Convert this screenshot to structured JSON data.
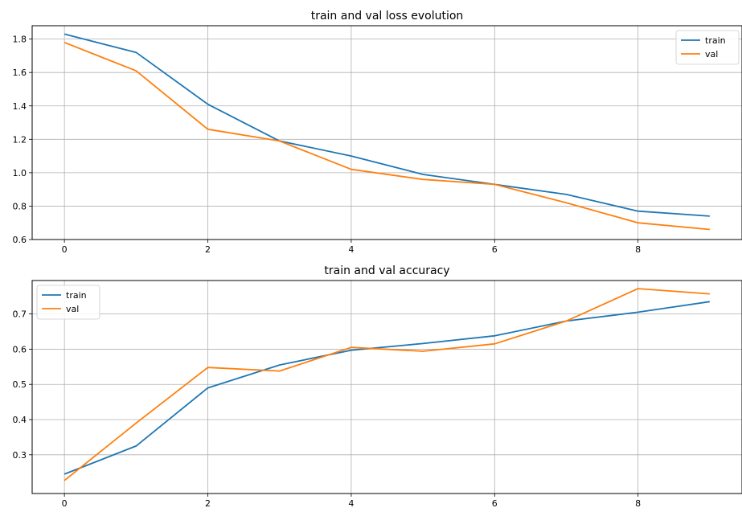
{
  "chart_data": [
    {
      "type": "line",
      "title": "train and val loss evolution",
      "xlabel": "",
      "ylabel": "",
      "x": [
        0,
        1,
        2,
        3,
        4,
        5,
        6,
        7,
        8,
        9
      ],
      "xlim": [
        -0.45,
        9.45
      ],
      "ylim": [
        0.6,
        1.88
      ],
      "xticks": [
        0,
        2,
        4,
        6,
        8
      ],
      "yticks": [
        0.6,
        0.8,
        1.0,
        1.2,
        1.4,
        1.6,
        1.8
      ],
      "ytick_format": 1,
      "grid": true,
      "legend_position": "top-right",
      "series": [
        {
          "name": "train",
          "color": "#1f77b4",
          "values": [
            1.83,
            1.72,
            1.41,
            1.19,
            1.1,
            0.99,
            0.93,
            0.87,
            0.77,
            0.74
          ]
        },
        {
          "name": "val",
          "color": "#ff7f0e",
          "values": [
            1.78,
            1.61,
            1.26,
            1.19,
            1.02,
            0.96,
            0.93,
            0.82,
            0.7,
            0.66
          ]
        }
      ]
    },
    {
      "type": "line",
      "title": "train and val accuracy",
      "xlabel": "",
      "ylabel": "",
      "x": [
        0,
        1,
        2,
        3,
        4,
        5,
        6,
        7,
        8,
        9
      ],
      "xlim": [
        -0.45,
        9.45
      ],
      "ylim": [
        0.19,
        0.795
      ],
      "xticks": [
        0,
        2,
        4,
        6,
        8
      ],
      "yticks": [
        0.3,
        0.4,
        0.5,
        0.6,
        0.7
      ],
      "ytick_format": 1,
      "grid": true,
      "legend_position": "top-left",
      "series": [
        {
          "name": "train",
          "color": "#1f77b4",
          "values": [
            0.245,
            0.325,
            0.49,
            0.555,
            0.597,
            0.616,
            0.638,
            0.68,
            0.705,
            0.735
          ]
        },
        {
          "name": "val",
          "color": "#ff7f0e",
          "values": [
            0.227,
            0.39,
            0.548,
            0.538,
            0.605,
            0.594,
            0.615,
            0.68,
            0.772,
            0.757
          ]
        }
      ]
    }
  ]
}
